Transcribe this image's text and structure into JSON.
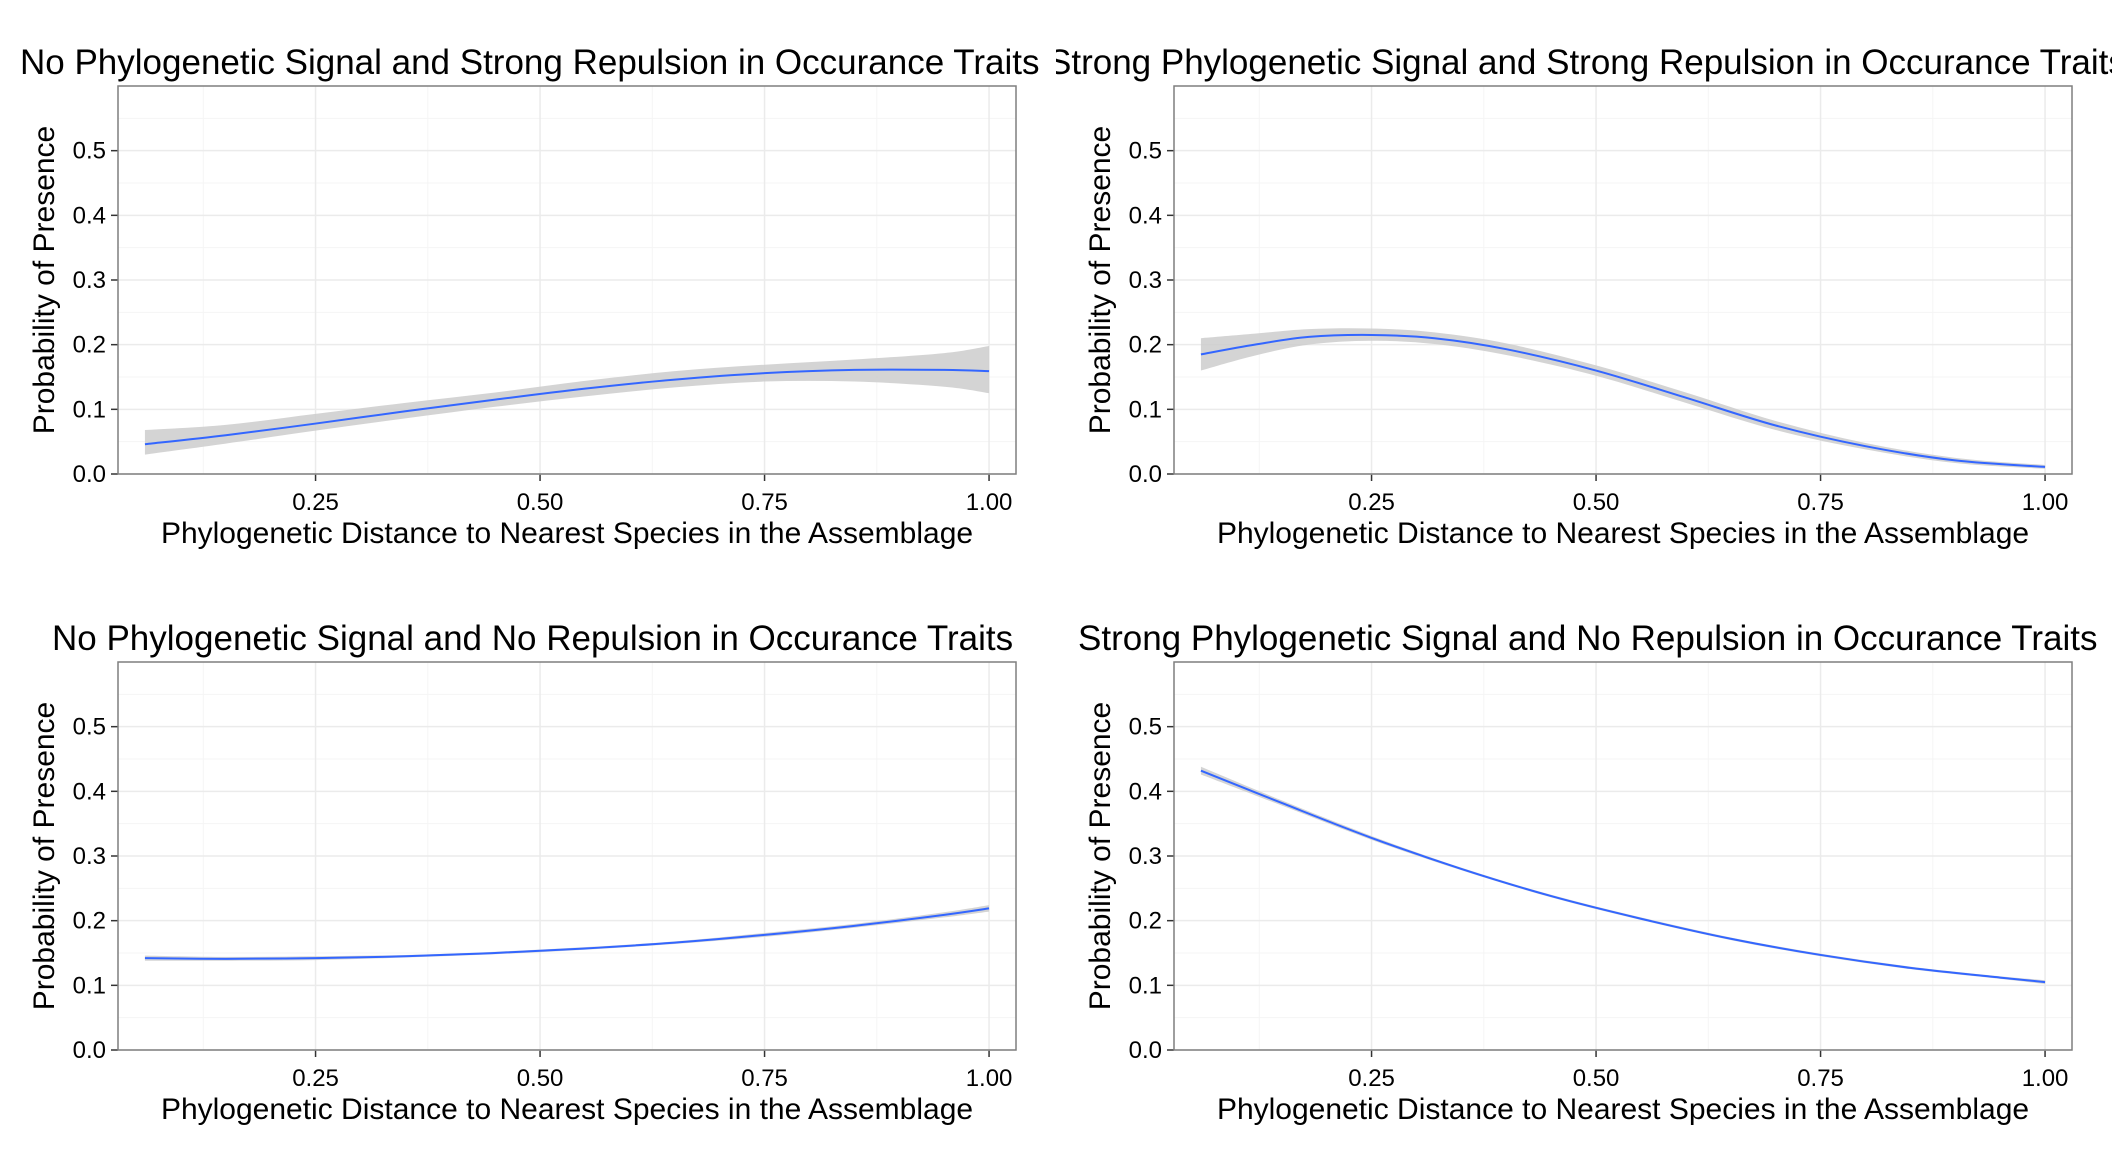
{
  "chart_data": [
    {
      "type": "line",
      "title": "No Phylogenetic Signal and Strong Repulsion in Occurance Traits",
      "xlabel": "Phylogenetic Distance to Nearest Species in the Assemblage",
      "ylabel": "Probability of Presence",
      "xlim": [
        0.03,
        1.03
      ],
      "ylim": [
        0,
        0.6
      ],
      "x_ticks": [
        "0.25",
        "0.50",
        "0.75",
        "1.00"
      ],
      "y_ticks": [
        "0.0",
        "0.1",
        "0.2",
        "0.3",
        "0.4",
        "0.5"
      ],
      "grid": true,
      "colors": {
        "line": "#3366ff",
        "ribbon": "#cccccc",
        "panel_border": "#7f7f7f",
        "grid_major": "#ebebeb",
        "grid_minor": "#f5f5f5"
      },
      "x": [
        0.06,
        0.15,
        0.25,
        0.35,
        0.45,
        0.55,
        0.65,
        0.75,
        0.85,
        0.95,
        1.0
      ],
      "y": [
        0.046,
        0.06,
        0.078,
        0.097,
        0.115,
        0.132,
        0.146,
        0.156,
        0.161,
        0.161,
        0.159
      ],
      "ymin": [
        0.03,
        0.047,
        0.067,
        0.086,
        0.104,
        0.12,
        0.134,
        0.143,
        0.143,
        0.135,
        0.125
      ],
      "ymax": [
        0.068,
        0.076,
        0.093,
        0.11,
        0.126,
        0.144,
        0.159,
        0.169,
        0.177,
        0.187,
        0.198
      ]
    },
    {
      "type": "line",
      "title": "Strong Phylogenetic Signal and Strong Repulsion in Occurance Traits",
      "xlabel": "Phylogenetic Distance to Nearest Species in the Assemblage",
      "ylabel": "Probability of Presence",
      "xlim": [
        0.03,
        1.03
      ],
      "ylim": [
        0,
        0.6
      ],
      "x_ticks": [
        "0.25",
        "0.50",
        "0.75",
        "1.00"
      ],
      "y_ticks": [
        "0.0",
        "0.1",
        "0.2",
        "0.3",
        "0.4",
        "0.5"
      ],
      "grid": true,
      "colors": {
        "line": "#3366ff",
        "ribbon": "#cccccc",
        "panel_border": "#7f7f7f",
        "grid_major": "#ebebeb",
        "grid_minor": "#f5f5f5"
      },
      "x": [
        0.06,
        0.12,
        0.18,
        0.25,
        0.32,
        0.4,
        0.5,
        0.6,
        0.7,
        0.8,
        0.9,
        1.0
      ],
      "y": [
        0.185,
        0.2,
        0.212,
        0.215,
        0.21,
        0.193,
        0.16,
        0.118,
        0.075,
        0.043,
        0.021,
        0.011
      ],
      "ymin": [
        0.16,
        0.183,
        0.2,
        0.206,
        0.201,
        0.184,
        0.152,
        0.11,
        0.068,
        0.038,
        0.017,
        0.008
      ],
      "ymax": [
        0.21,
        0.217,
        0.224,
        0.225,
        0.219,
        0.202,
        0.168,
        0.126,
        0.082,
        0.048,
        0.025,
        0.014
      ]
    },
    {
      "type": "line",
      "title": "No Phylogenetic Signal and No Repulsion in Occurance Traits",
      "xlabel": "Phylogenetic Distance to Nearest Species in the Assemblage",
      "ylabel": "Probability of Presence",
      "xlim": [
        0.03,
        1.03
      ],
      "ylim": [
        0,
        0.6
      ],
      "x_ticks": [
        "0.25",
        "0.50",
        "0.75",
        "1.00"
      ],
      "y_ticks": [
        "0.0",
        "0.1",
        "0.2",
        "0.3",
        "0.4",
        "0.5"
      ],
      "grid": true,
      "colors": {
        "line": "#3366ff",
        "ribbon": "#cccccc",
        "panel_border": "#7f7f7f",
        "grid_major": "#ebebeb",
        "grid_minor": "#f5f5f5"
      },
      "x": [
        0.06,
        0.15,
        0.25,
        0.35,
        0.45,
        0.55,
        0.65,
        0.75,
        0.85,
        0.95,
        1.0
      ],
      "y": [
        0.142,
        0.141,
        0.142,
        0.145,
        0.15,
        0.157,
        0.166,
        0.178,
        0.192,
        0.209,
        0.219
      ],
      "ymin": [
        0.138,
        0.138,
        0.139,
        0.143,
        0.148,
        0.155,
        0.164,
        0.175,
        0.189,
        0.205,
        0.214
      ],
      "ymax": [
        0.146,
        0.144,
        0.145,
        0.147,
        0.152,
        0.159,
        0.168,
        0.181,
        0.195,
        0.213,
        0.224
      ]
    },
    {
      "type": "line",
      "title": "Strong Phylogenetic Signal and No Repulsion in Occurance Traits",
      "xlabel": "Phylogenetic Distance to Nearest Species in the Assemblage",
      "ylabel": "Probability of Presence",
      "xlim": [
        0.03,
        1.03
      ],
      "ylim": [
        0,
        0.6
      ],
      "x_ticks": [
        "0.25",
        "0.50",
        "0.75",
        "1.00"
      ],
      "y_ticks": [
        "0.0",
        "0.1",
        "0.2",
        "0.3",
        "0.4",
        "0.5"
      ],
      "grid": true,
      "colors": {
        "line": "#3366ff",
        "ribbon": "#cccccc",
        "panel_border": "#7f7f7f",
        "grid_major": "#ebebeb",
        "grid_minor": "#f5f5f5"
      },
      "x": [
        0.06,
        0.15,
        0.25,
        0.35,
        0.45,
        0.55,
        0.65,
        0.75,
        0.85,
        0.95,
        1.0
      ],
      "y": [
        0.432,
        0.382,
        0.328,
        0.28,
        0.238,
        0.203,
        0.172,
        0.147,
        0.127,
        0.112,
        0.105
      ],
      "ymin": [
        0.426,
        0.378,
        0.325,
        0.278,
        0.236,
        0.201,
        0.17,
        0.145,
        0.125,
        0.11,
        0.102
      ],
      "ymax": [
        0.438,
        0.386,
        0.331,
        0.282,
        0.24,
        0.205,
        0.174,
        0.149,
        0.129,
        0.114,
        0.108
      ]
    }
  ]
}
